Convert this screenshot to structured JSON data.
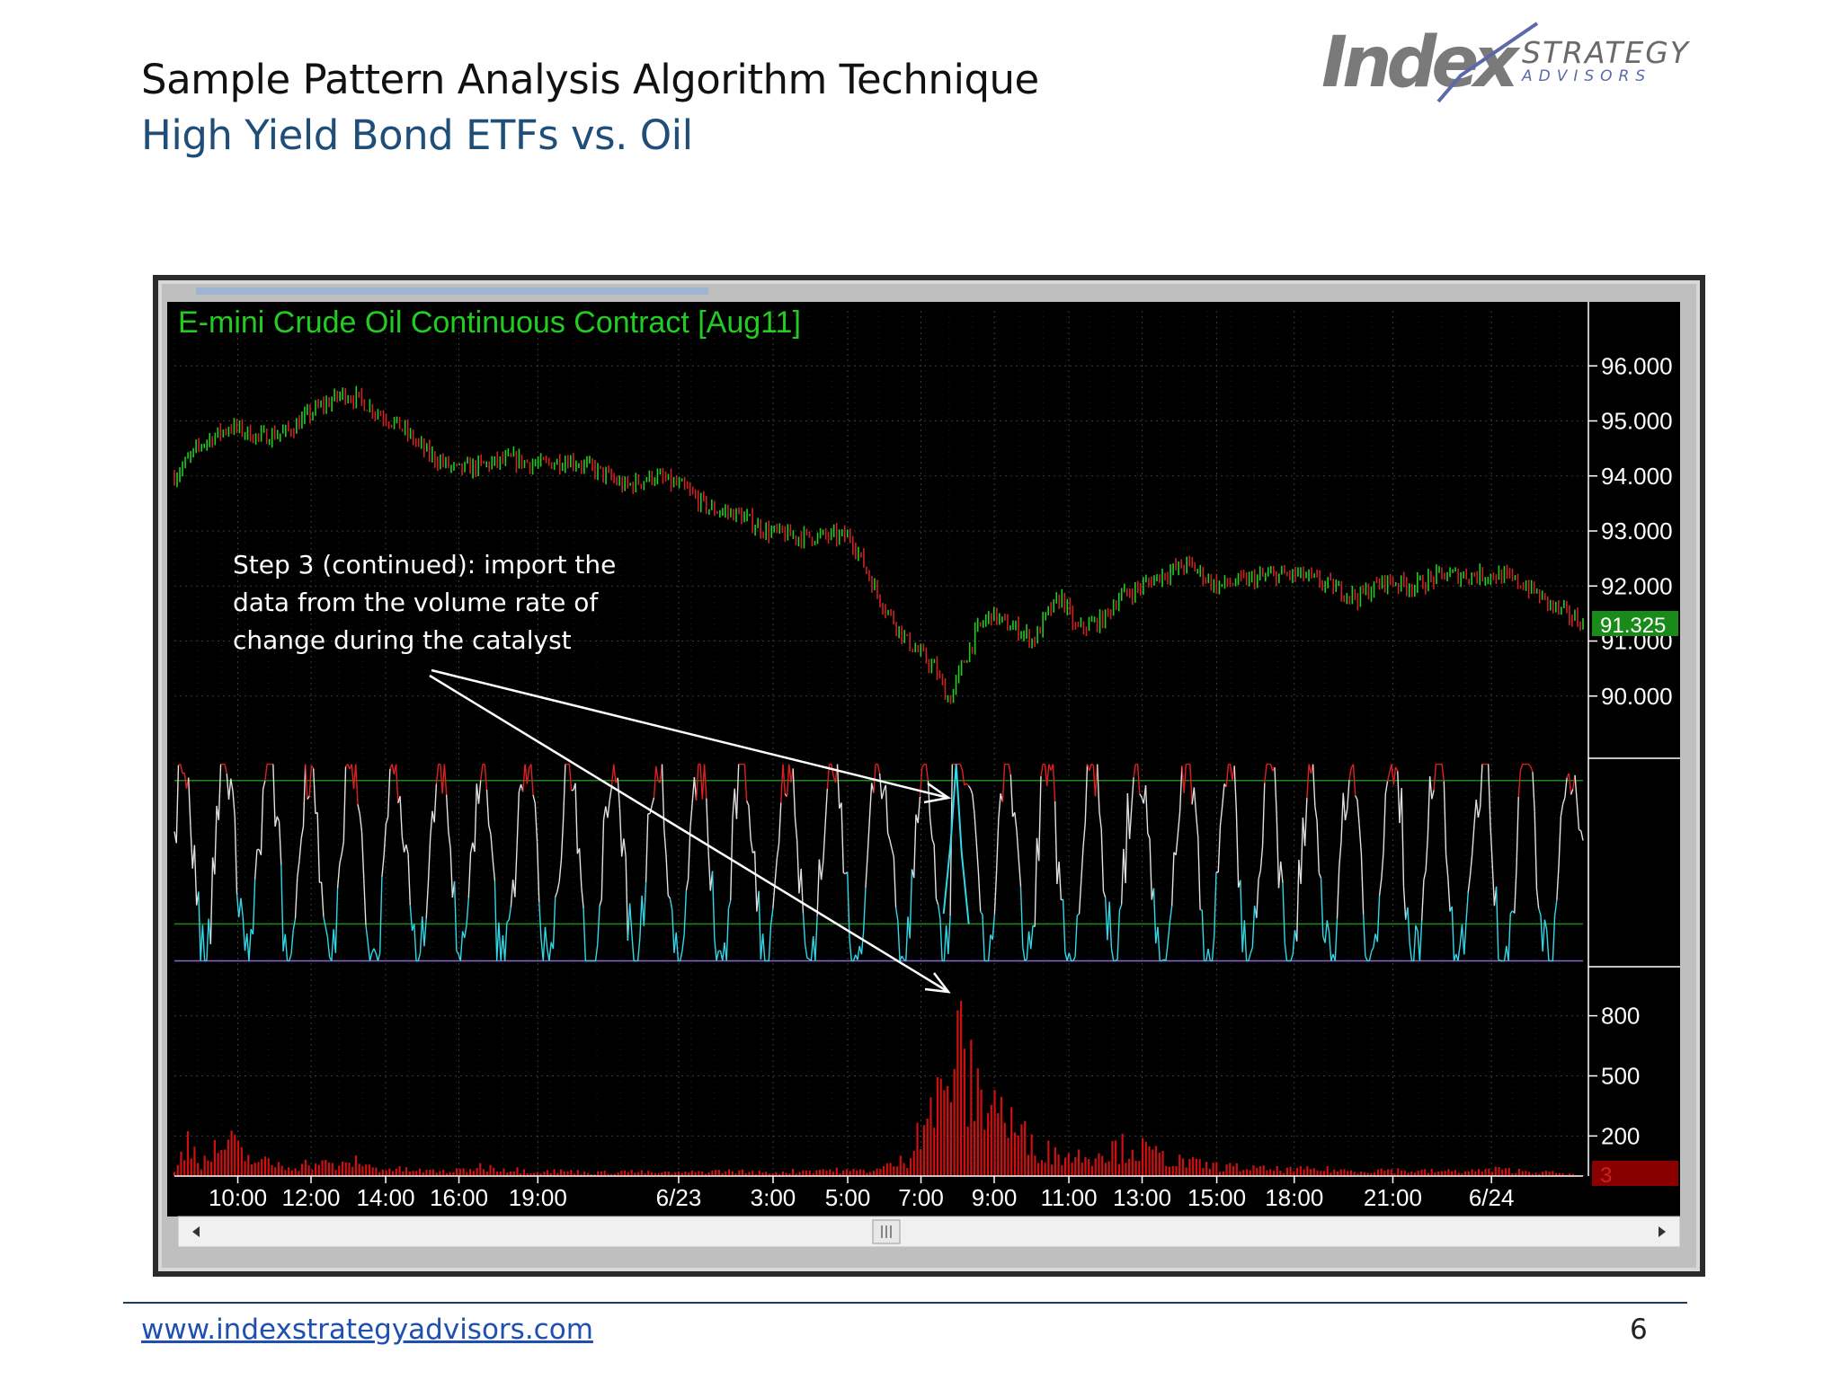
{
  "slide": {
    "title": "Sample Pattern Analysis Algorithm Technique",
    "subtitle": "High Yield Bond ETFs vs. Oil",
    "logo_main": "Index",
    "logo_strategy": "STRATEGY",
    "logo_advisors": "ADVISORS",
    "footer_url": "www.indexstrategyadvisors.com",
    "page_number": "6"
  },
  "annotation": {
    "lines": [
      "Step 3 (continued): import the",
      "data from the volume rate of",
      "change during the catalyst"
    ]
  },
  "colors": {
    "background": "#000000",
    "grid": "#3a3a3a",
    "price_up": "#22cc22",
    "price_down": "#cc2222",
    "oscillator": "#e0e0e0",
    "oscillator_low": "#30d8e8",
    "oscillator_high": "#e02020",
    "threshold": "#1a8a1a",
    "volume": "#d01010",
    "title_text": "#22cc22",
    "axis_text": "#ffffff"
  },
  "chart_data": {
    "type": "line",
    "title": "E-mini Crude Oil Continuous Contract [Aug11]",
    "x_tick_labels": [
      "10:00",
      "12:00",
      "14:00",
      "16:00",
      "19:00",
      "6/23",
      "3:00",
      "5:00",
      "7:00",
      "9:00",
      "11:00",
      "13:00",
      "15:00",
      "18:00",
      "21:00",
      "6/24"
    ],
    "price_panel": {
      "y_tick_labels": [
        "96.000",
        "95.000",
        "94.000",
        "93.000",
        "92.000",
        "91.000",
        "90.000"
      ],
      "ylim": [
        89.0,
        97.0
      ],
      "last_value": "91.325",
      "x_fraction": [
        0.0,
        0.02,
        0.04,
        0.06,
        0.08,
        0.1,
        0.12,
        0.13,
        0.16,
        0.18,
        0.2,
        0.22,
        0.24,
        0.26,
        0.28,
        0.3,
        0.32,
        0.34,
        0.36,
        0.38,
        0.4,
        0.42,
        0.44,
        0.46,
        0.48,
        0.5,
        0.52,
        0.54,
        0.55,
        0.56,
        0.57,
        0.58,
        0.59,
        0.6,
        0.61,
        0.62,
        0.63,
        0.64,
        0.65,
        0.66,
        0.67,
        0.68,
        0.7,
        0.72,
        0.74,
        0.76,
        0.78,
        0.8,
        0.82,
        0.84,
        0.86,
        0.88,
        0.9,
        0.92,
        0.94,
        0.96,
        0.98,
        1.0
      ],
      "close": [
        94.0,
        94.6,
        94.9,
        94.7,
        94.8,
        95.2,
        95.5,
        95.4,
        94.9,
        94.4,
        94.1,
        94.2,
        94.3,
        94.2,
        94.3,
        94.1,
        93.8,
        94.0,
        93.8,
        93.4,
        93.3,
        93.0,
        92.9,
        92.9,
        92.9,
        91.8,
        91.0,
        90.5,
        89.9,
        90.6,
        91.2,
        91.5,
        91.3,
        91.2,
        91.0,
        91.5,
        91.8,
        91.2,
        91.3,
        91.4,
        91.8,
        91.9,
        92.2,
        92.4,
        92.0,
        92.1,
        92.2,
        92.2,
        92.0,
        91.8,
        92.1,
        92.0,
        92.2,
        92.2,
        92.2,
        92.0,
        91.6,
        91.325
      ]
    },
    "oscillator_panel": {
      "upper_threshold": 0.9,
      "lower_threshold": 0.2,
      "event_peak_x_fraction": 0.555
    },
    "volume_panel": {
      "y_tick_labels": [
        "800",
        "500",
        "200"
      ],
      "ylim": [
        0,
        1000
      ],
      "last_value": "3",
      "x_fraction": [
        0.0,
        0.01,
        0.02,
        0.03,
        0.04,
        0.05,
        0.06,
        0.08,
        0.1,
        0.12,
        0.13,
        0.14,
        0.16,
        0.18,
        0.2,
        0.22,
        0.24,
        0.26,
        0.28,
        0.3,
        0.32,
        0.34,
        0.36,
        0.38,
        0.4,
        0.42,
        0.44,
        0.46,
        0.48,
        0.5,
        0.52,
        0.53,
        0.54,
        0.55,
        0.555,
        0.56,
        0.57,
        0.58,
        0.59,
        0.6,
        0.61,
        0.62,
        0.64,
        0.66,
        0.68,
        0.7,
        0.72,
        0.74,
        0.76,
        0.78,
        0.8,
        0.82,
        0.84,
        0.86,
        0.88,
        0.9,
        0.92,
        0.94,
        0.96,
        0.98,
        1.0
      ],
      "values": [
        20,
        240,
        80,
        160,
        200,
        120,
        90,
        60,
        80,
        60,
        100,
        50,
        40,
        30,
        30,
        60,
        40,
        30,
        30,
        20,
        30,
        20,
        20,
        30,
        30,
        20,
        30,
        40,
        30,
        40,
        100,
        380,
        420,
        560,
        920,
        650,
        480,
        520,
        360,
        250,
        200,
        150,
        120,
        160,
        180,
        120,
        80,
        60,
        50,
        40,
        40,
        40,
        30,
        40,
        30,
        30,
        30,
        40,
        30,
        20,
        3
      ]
    }
  }
}
